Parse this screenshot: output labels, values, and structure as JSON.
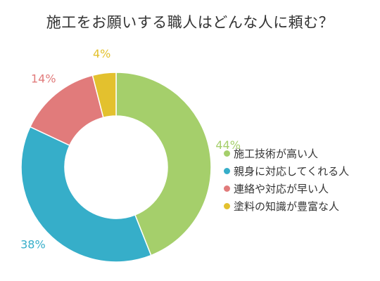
{
  "chart_data": {
    "type": "pie",
    "title": "施工をお願いする職人はどんな人に頼む？",
    "categories": [
      "施工技術が高い人",
      "親身に対応してくれる人",
      "連絡や対応が早い人",
      "塗料の知識が豊富な人"
    ],
    "values": [
      44,
      38,
      14,
      4
    ],
    "value_labels": [
      "44%",
      "38%",
      "14%",
      "4%"
    ],
    "colors": [
      "#a5cf6b",
      "#36aec9",
      "#e17b7b",
      "#e3c12e"
    ],
    "legend_position": "right",
    "donut": true
  }
}
